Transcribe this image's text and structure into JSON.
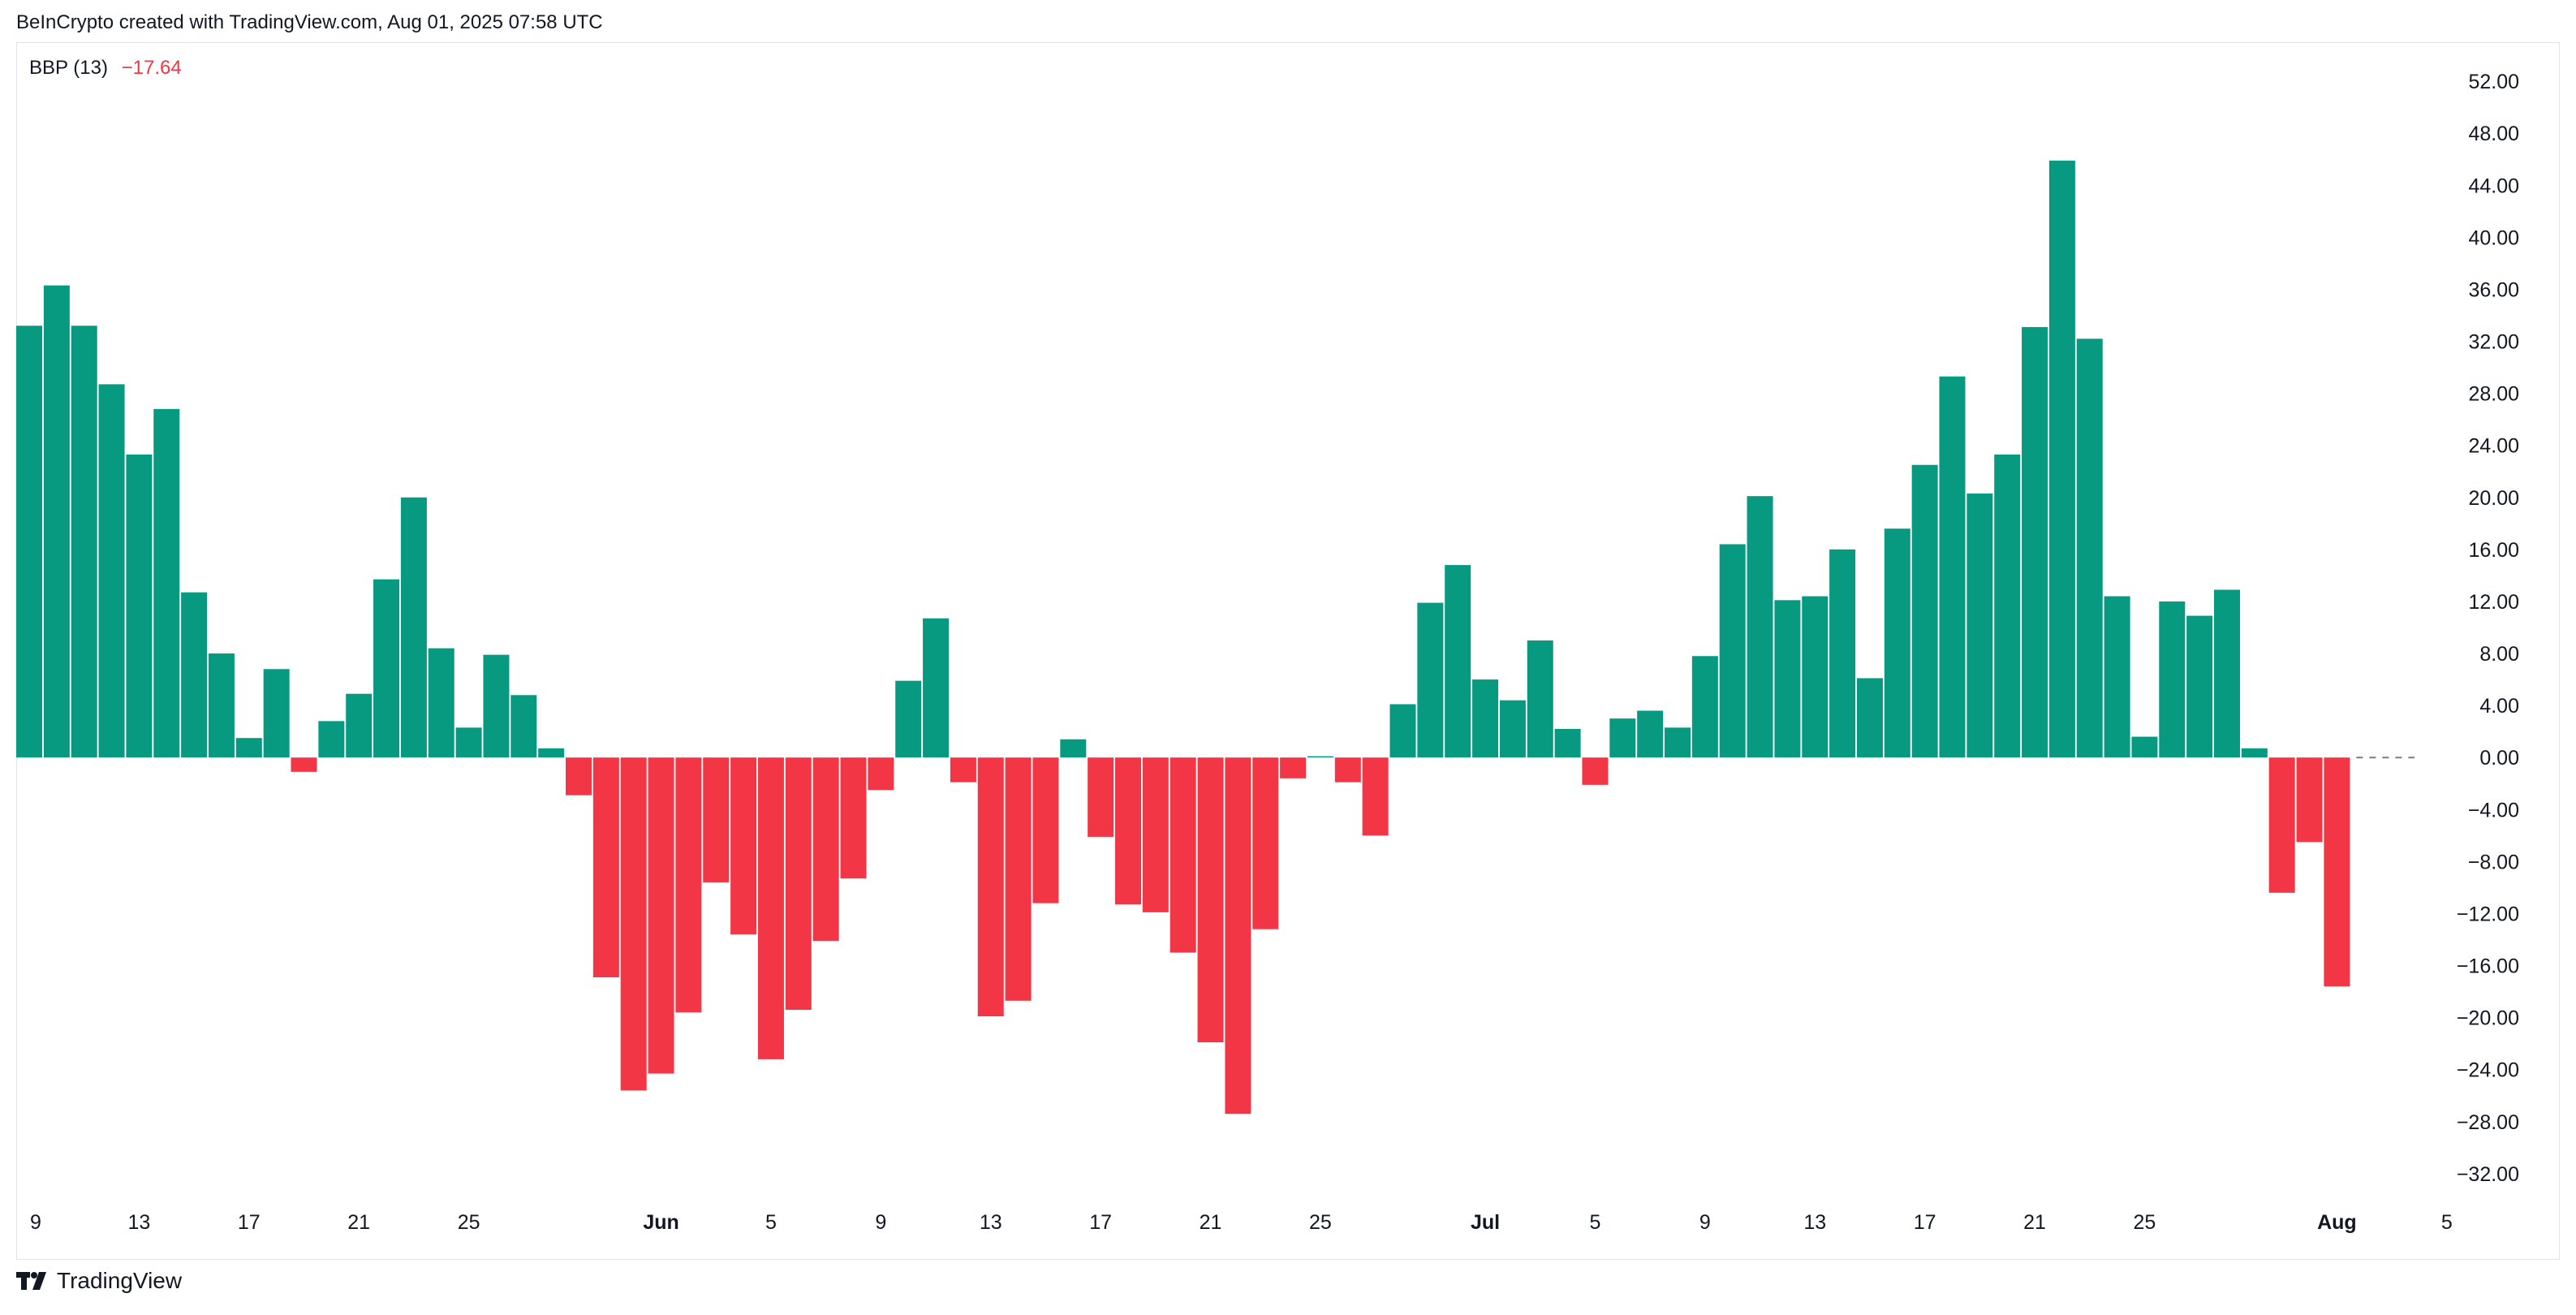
{
  "header": {
    "text": "BeInCrypto created with TradingView.com, Aug 01, 2025 07:58 UTC"
  },
  "indicator": {
    "name": "BBP (13)",
    "value": "−17.64"
  },
  "footer": {
    "brand": "TradingView",
    "logo_icon": "tradingview-logo-icon"
  },
  "colors": {
    "positive": "#089981",
    "negative": "#f23645",
    "zero_line": "#787b86"
  },
  "chart_data": {
    "type": "bar",
    "title": "BBP (13)",
    "ylim": [
      -36,
      56
    ],
    "grid": false,
    "y_ticks": [
      "52.00",
      "48.00",
      "44.00",
      "40.00",
      "36.00",
      "32.00",
      "28.00",
      "24.00",
      "20.00",
      "16.00",
      "12.00",
      "8.00",
      "4.00",
      "0.00",
      "−4.00",
      "−8.00",
      "−12.00",
      "−16.00",
      "−20.00",
      "−24.00",
      "−28.00",
      "−32.00"
    ],
    "x_ticks": [
      {
        "label": "9",
        "index": 0
      },
      {
        "label": "13",
        "index": 4
      },
      {
        "label": "17",
        "index": 8
      },
      {
        "label": "21",
        "index": 12
      },
      {
        "label": "25",
        "index": 16
      },
      {
        "label": "Jun",
        "index": 23,
        "bold": true
      },
      {
        "label": "5",
        "index": 27
      },
      {
        "label": "9",
        "index": 31
      },
      {
        "label": "13",
        "index": 35
      },
      {
        "label": "17",
        "index": 39
      },
      {
        "label": "21",
        "index": 43
      },
      {
        "label": "25",
        "index": 47
      },
      {
        "label": "Jul",
        "index": 53,
        "bold": true
      },
      {
        "label": "5",
        "index": 57
      },
      {
        "label": "9",
        "index": 61
      },
      {
        "label": "13",
        "index": 65
      },
      {
        "label": "17",
        "index": 69
      },
      {
        "label": "21",
        "index": 73
      },
      {
        "label": "25",
        "index": 77
      },
      {
        "label": "Aug",
        "index": 84,
        "bold": true
      },
      {
        "label": "5",
        "index": 88
      }
    ],
    "values": [
      33.2,
      36.3,
      33.2,
      28.7,
      23.3,
      26.8,
      12.7,
      8.0,
      1.5,
      6.8,
      -1.1,
      2.8,
      4.9,
      13.7,
      20.0,
      8.4,
      2.3,
      7.9,
      4.8,
      0.7,
      -2.9,
      -16.9,
      -25.6,
      -24.3,
      -19.6,
      -9.6,
      -13.6,
      -23.2,
      -19.4,
      -14.1,
      -9.3,
      -2.5,
      5.9,
      10.7,
      -1.9,
      -19.9,
      -18.7,
      -11.2,
      1.4,
      -6.1,
      -11.3,
      -11.9,
      -15.0,
      -21.9,
      -27.4,
      -13.2,
      -1.6,
      0.1,
      -1.9,
      -6.0,
      4.1,
      11.9,
      14.8,
      6.0,
      4.4,
      9.0,
      2.2,
      -2.1,
      3.0,
      3.6,
      2.3,
      7.8,
      16.4,
      20.1,
      12.1,
      12.4,
      16.0,
      6.1,
      17.6,
      22.5,
      29.3,
      20.3,
      23.3,
      33.1,
      45.9,
      32.2,
      12.4,
      1.6,
      12.0,
      10.9,
      12.9,
      0.7,
      -10.4,
      -6.5,
      -17.6
    ]
  }
}
